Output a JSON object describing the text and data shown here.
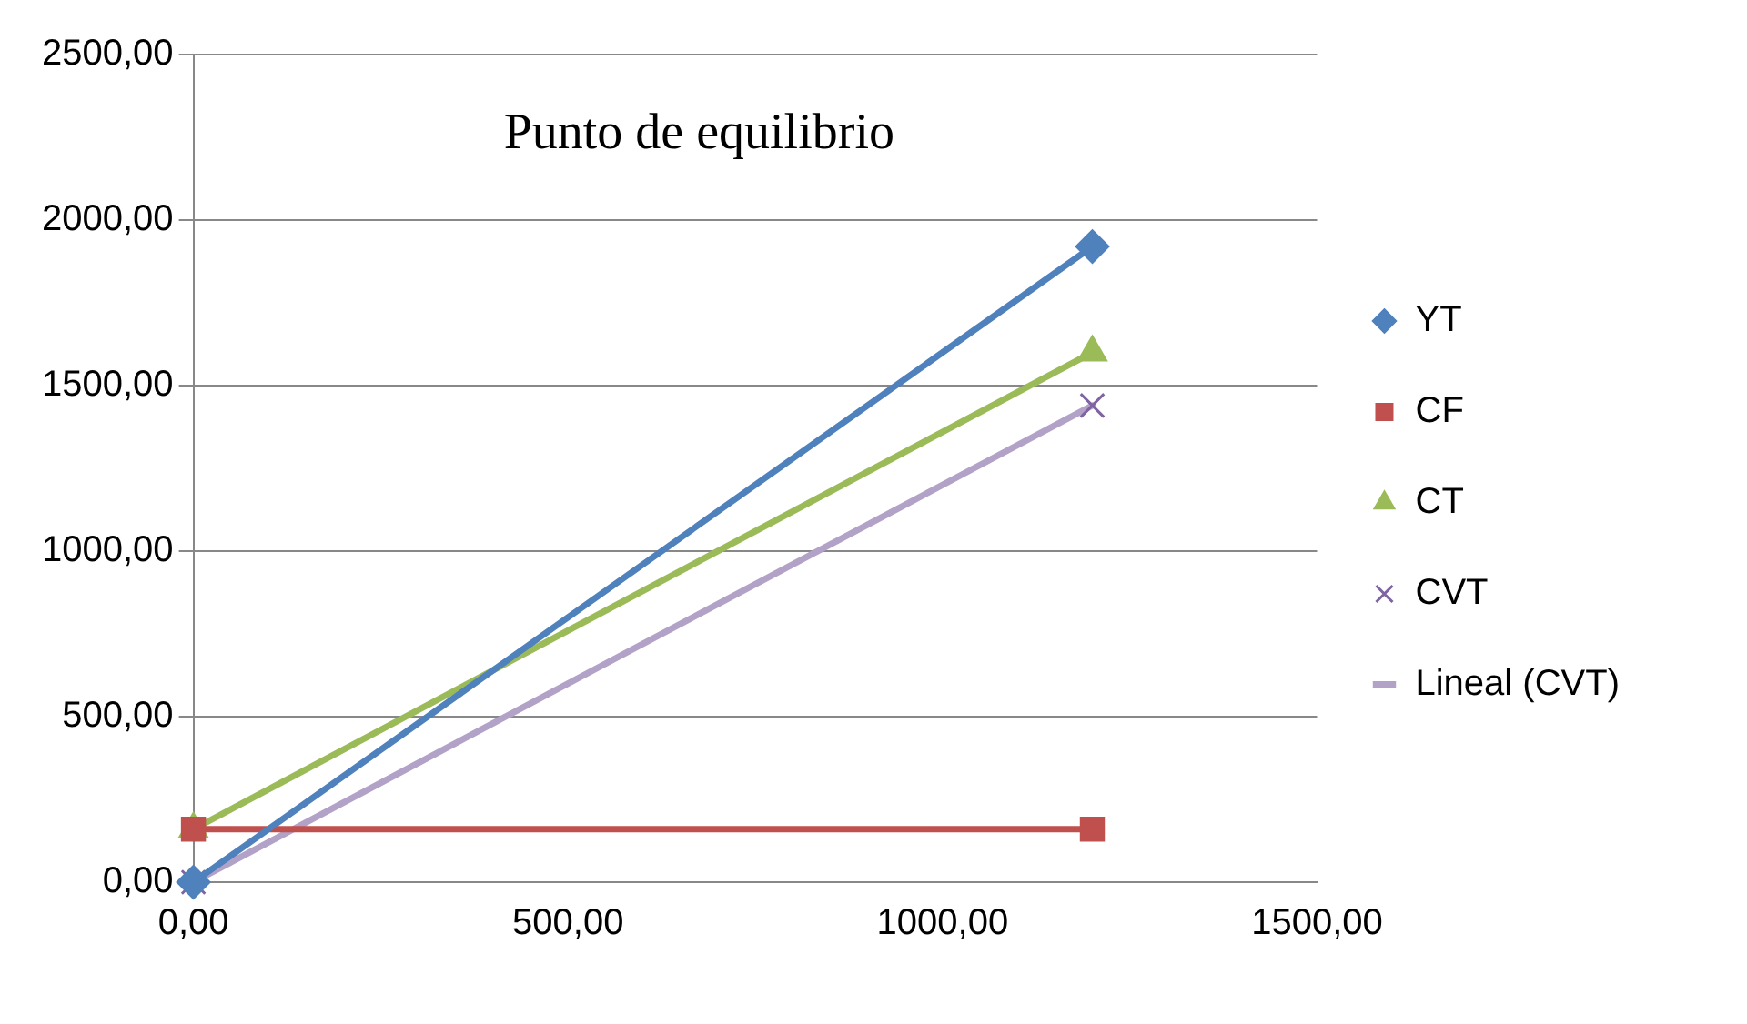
{
  "chart_data": {
    "type": "line",
    "title": "Punto de equilibrio",
    "x": [
      0,
      1200
    ],
    "xlim": [
      0,
      1500
    ],
    "xticks": [
      {
        "value": 0,
        "label": "0,00"
      },
      {
        "value": 500,
        "label": "500,00"
      },
      {
        "value": 1000,
        "label": "1000,00"
      },
      {
        "value": 1500,
        "label": "1500,00"
      }
    ],
    "ylim": [
      0,
      2500
    ],
    "yticks": [
      {
        "value": 0,
        "label": "0,00"
      },
      {
        "value": 500,
        "label": "500,00"
      },
      {
        "value": 1000,
        "label": "1000,00"
      },
      {
        "value": 1500,
        "label": "1500,00"
      },
      {
        "value": 2000,
        "label": "2000,00"
      },
      {
        "value": 2500,
        "label": "2500,00"
      }
    ],
    "grid": "y",
    "legend": "right",
    "series": [
      {
        "name": "YT",
        "type": "line",
        "marker": "diamond",
        "color": "#4f81bd",
        "values": [
          0,
          1920
        ]
      },
      {
        "name": "CF",
        "type": "line",
        "marker": "square",
        "color": "#c0504d",
        "values": [
          160,
          160
        ]
      },
      {
        "name": "CT",
        "type": "line",
        "marker": "triangle",
        "color": "#9bbb59",
        "values": [
          160,
          1600
        ]
      },
      {
        "name": "CVT",
        "type": "scatter",
        "marker": "cross",
        "color": "#8064a2",
        "values": [
          0,
          1440
        ]
      },
      {
        "name": "Lineal (CVT)",
        "type": "line",
        "marker": "none",
        "color": "#b3a2c7",
        "values": [
          0,
          1440
        ]
      }
    ]
  }
}
